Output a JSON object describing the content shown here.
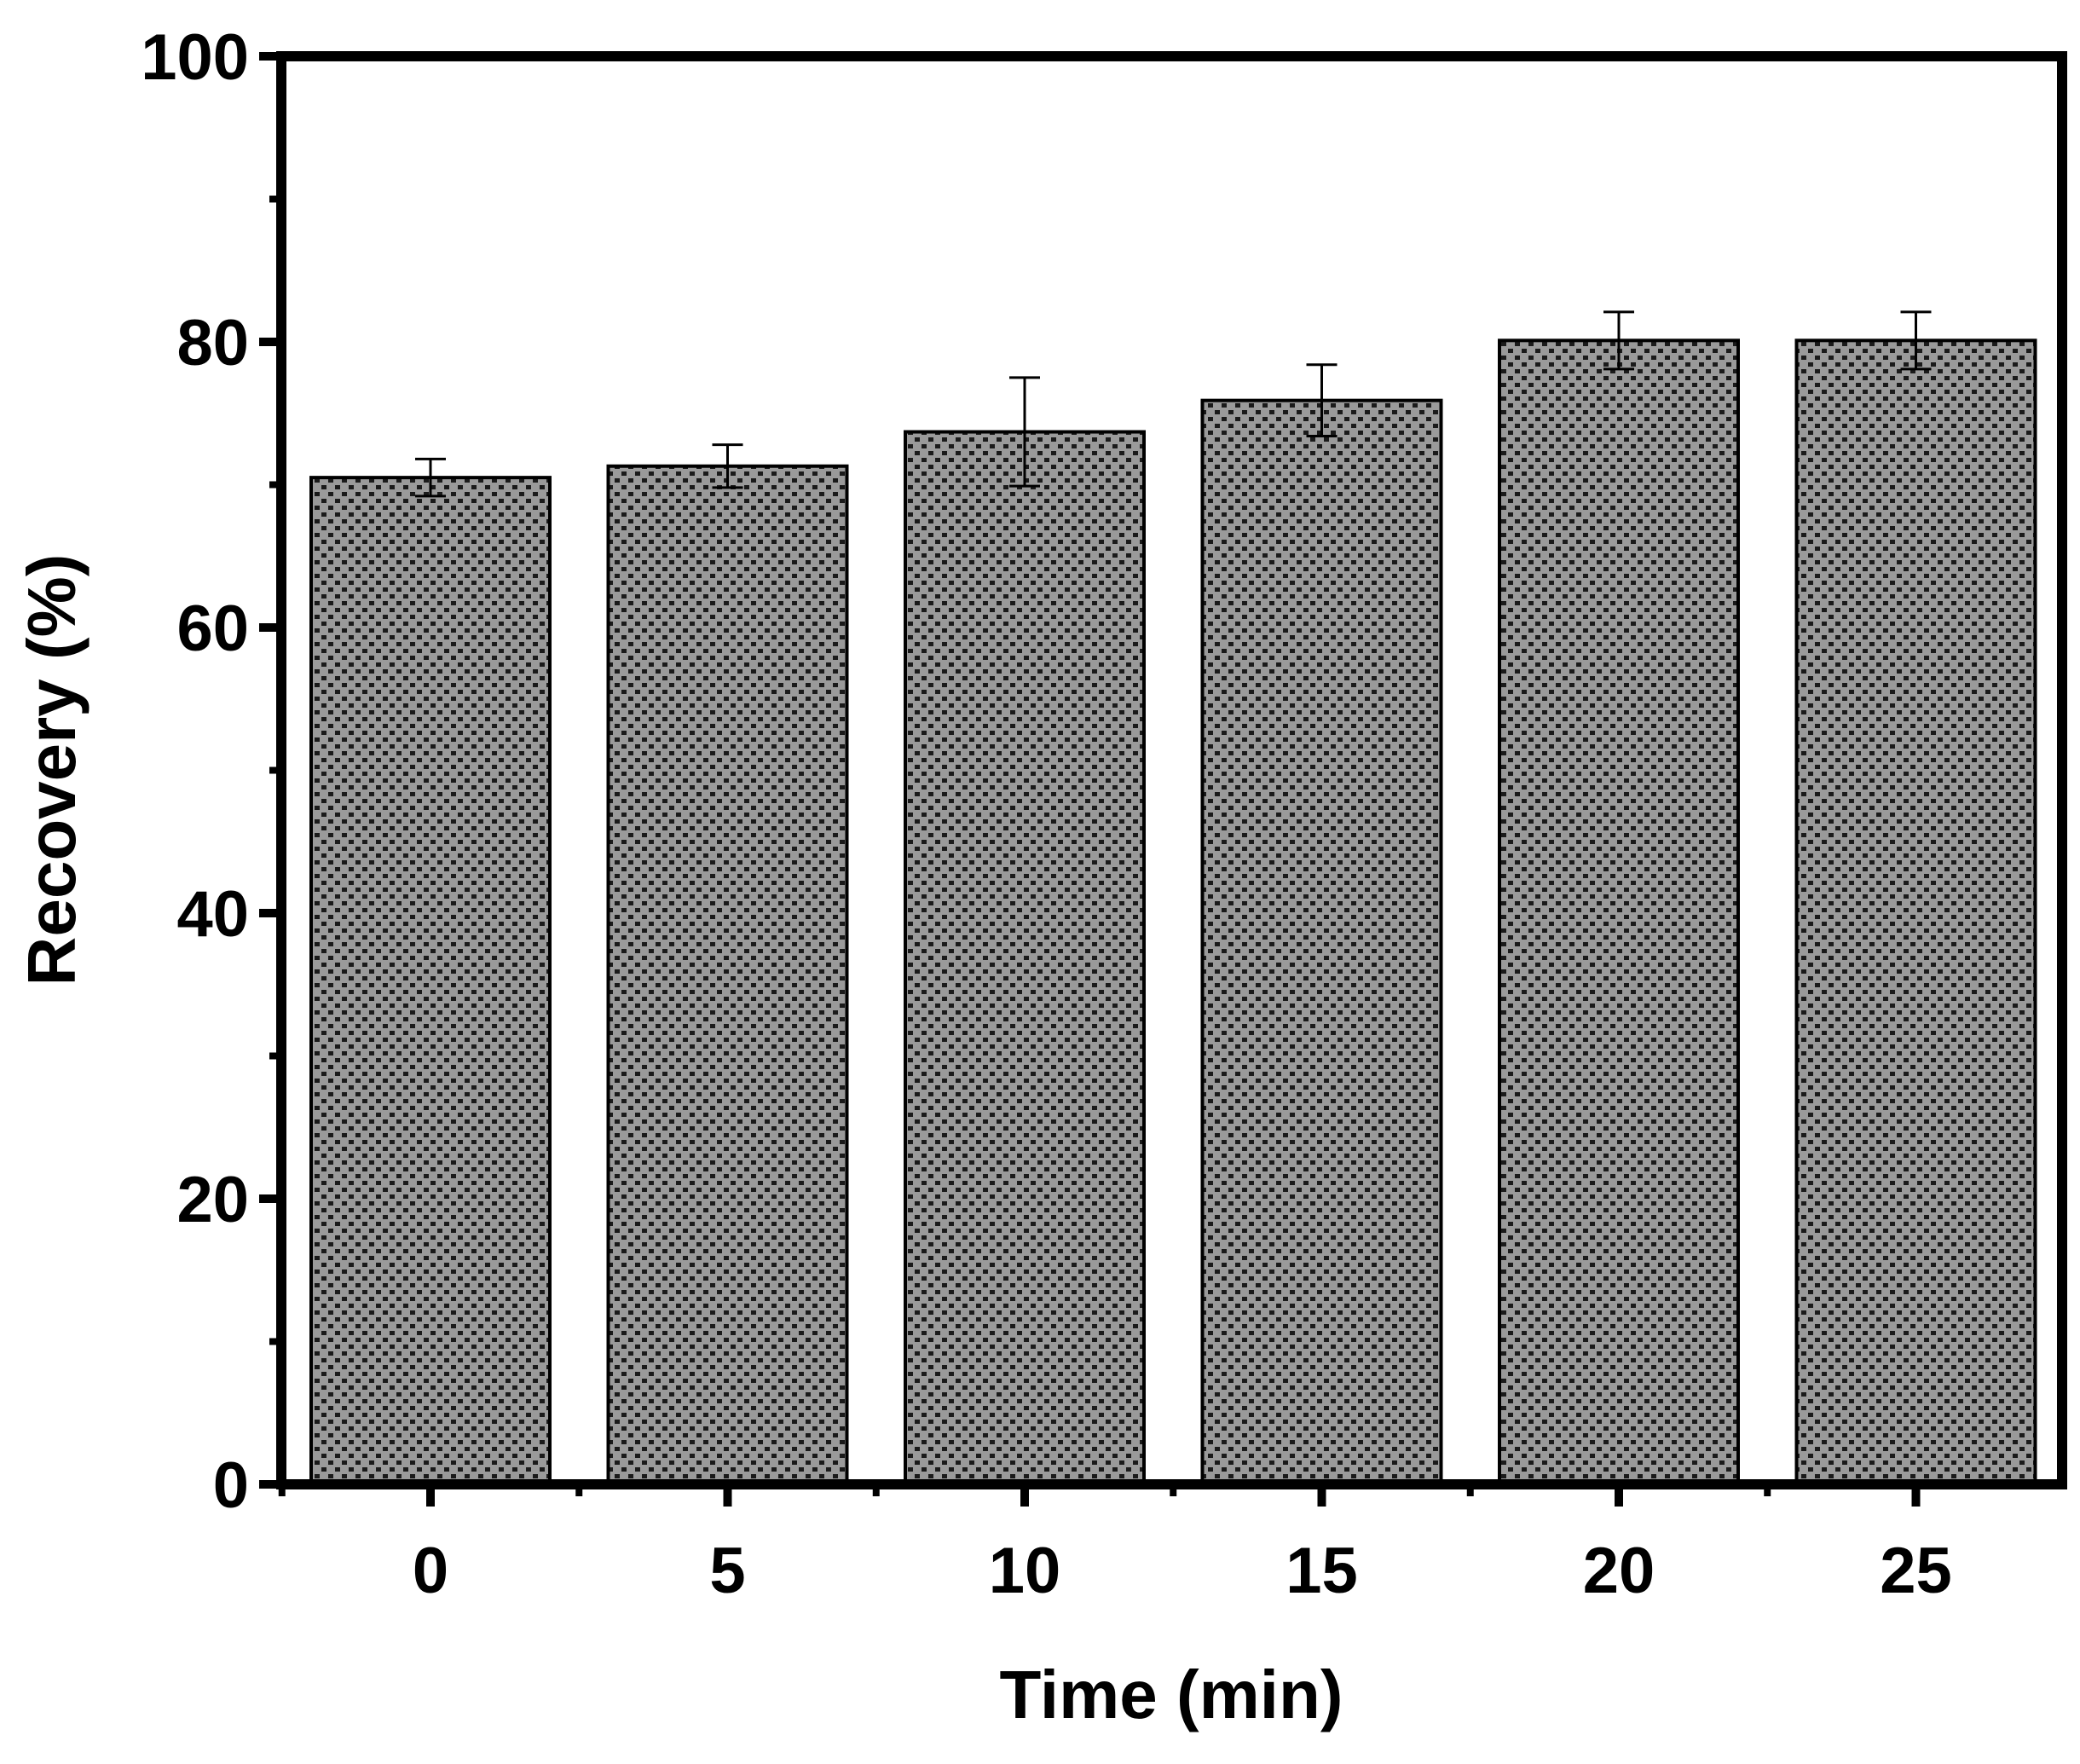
{
  "chart_data": {
    "type": "bar",
    "title": "",
    "xlabel": "Time (min)",
    "ylabel": "Recovery (%)",
    "categories": [
      "0",
      "5",
      "10",
      "15",
      "20",
      "25"
    ],
    "values": [
      70.5,
      71.3,
      73.7,
      75.9,
      80.1,
      80.1
    ],
    "errors": [
      1.3,
      1.5,
      3.8,
      2.5,
      2.0,
      2.0
    ],
    "ylim": [
      0,
      100
    ],
    "yticks": [
      0,
      20,
      40,
      60,
      80,
      100
    ],
    "yticks_labels": [
      "0",
      "20",
      "40",
      "60",
      "80",
      "100"
    ],
    "grid": false,
    "legend": "none",
    "bar_fill": "#9a9a9a",
    "bar_pattern_color": "#1a1a1a",
    "axis_color": "#000000"
  }
}
